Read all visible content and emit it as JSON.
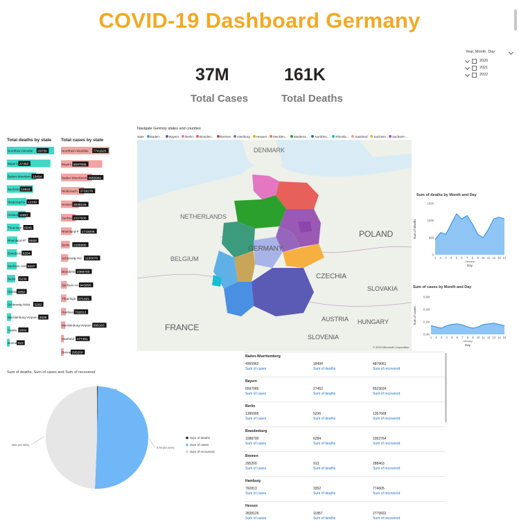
{
  "header": {
    "title": "COVID-19 Dashboard Germany"
  },
  "kpis": [
    {
      "value": "37M",
      "label": "Total Cases"
    },
    {
      "value": "161K",
      "label": "Total Deaths"
    }
  ],
  "slicer": {
    "title": "Year, Month, Day",
    "options": [
      "2020",
      "2021",
      "2022"
    ]
  },
  "colors": {
    "title": "#f2a922",
    "deaths_bar": "#3dd9c5",
    "cases_bar": "#f4a3a3",
    "area_fill": "#8ec5f5",
    "area_line": "#2b87e0"
  },
  "deaths_by_state": {
    "title": "Total deaths by state",
    "rows": [
      {
        "state": "Nordrhein-Westfalen",
        "label": "Nordrhein-Westfal",
        "value": 29730
      },
      {
        "state": "Bayern",
        "label": "Bayern",
        "value": 27452
      },
      {
        "state": "Baden-Wuerttemberg",
        "label": "Baden-Wuerttem",
        "value": 18494
      },
      {
        "state": "Sachsen",
        "label": "Sachsen",
        "value": 16518
      },
      {
        "state": "Niedersachsen",
        "label": "Niedersachs",
        "value": 12230
      },
      {
        "state": "Hessen",
        "label": "Hessen",
        "value": 11857
      },
      {
        "state": "Thueringen",
        "label": "Thueringe",
        "value": 8046
      },
      {
        "state": "Rheinland-Pfalz",
        "label": "Rheinland-Pf",
        "value": 6626
      },
      {
        "state": "Brandenburg",
        "label": "Brandenb",
        "value": 6284
      },
      {
        "state": "Sachsen-Anhalt",
        "label": "Sachsen-Anh",
        "value": 6107
      },
      {
        "state": "Berlin",
        "label": "Berlin",
        "value": 5236
      },
      {
        "state": "Hamburg",
        "label": "Hambu",
        "value": 3352
      },
      {
        "state": "Schleswig-Holstein",
        "label": "Schleswig-Holst",
        "value": 3282
      },
      {
        "state": "Mecklenburg-Vorpommern",
        "label": "Mecklenburg-Vorpom",
        "value": 2639
      },
      {
        "state": "Saarland",
        "label": "Saarla",
        "value": 2002
      },
      {
        "state": "Bremen",
        "label": "Breme",
        "value": 913
      }
    ]
  },
  "cases_by_state": {
    "title": "Total cases by state",
    "rows": [
      {
        "label": "Nordrhein-Westfale",
        "value": 7741625
      },
      {
        "label": "Bayern",
        "value": 6597086
      },
      {
        "label": "Baden-Wuerttemb",
        "value": 4955962
      },
      {
        "label": "Niedersach",
        "value": 3726279
      },
      {
        "label": "Hessen",
        "value": 2838126
      },
      {
        "label": "Sachse",
        "value": 2327930
      },
      {
        "label": "Rheinland-P",
        "value": 1715006
      },
      {
        "label": "Berlin",
        "value": 1395995
      },
      {
        "label": "Schleswig-Hol",
        "value": 1150078
      },
      {
        "label": "Brandenb",
        "value": 1088700
      },
      {
        "label": "Sachsen-An",
        "value": 943096
      },
      {
        "label": "Thueringe",
        "value": 871531
      },
      {
        "label": "Hamburg",
        "value": 792813
      },
      {
        "label": "Mecklenburg-Vorpom",
        "value": 695163
      },
      {
        "label": "Saarland",
        "value": 477361
      },
      {
        "label": "Breme",
        "value": 295200
      }
    ]
  },
  "map": {
    "title": "Navigate Germny states and counties",
    "legend_label": "state",
    "legend": [
      "Baden-...",
      "Bayern",
      "Berlin",
      "Branden...",
      "Bremen",
      "Hamburg",
      "Hessen",
      "Mecklen...",
      "Niedersa...",
      "Nordrhei...",
      "Rheinla...",
      "Saarland",
      "Sachsen",
      "Sachsen-..."
    ],
    "legend_colors": [
      "#4a90e2",
      "#5b5bb5",
      "#e377c2",
      "#e8605a",
      "#8c564b",
      "#9467bd",
      "#bcbd22",
      "#e07b54",
      "#2ca02c",
      "#1f77b4",
      "#17becf",
      "#ff9896",
      "#f5b041",
      "#9b59b6"
    ],
    "countries": [
      "DENMARK",
      "NETHERLANDS",
      "BELGIUM",
      "GERMANY",
      "POLAND",
      "CZECHIA",
      "SLOVAKIA",
      "AUSTRIA",
      "HUNGARY",
      "FRANCE",
      "SLOVENIA"
    ],
    "attribution": "© 2023 Microsoft Corporation"
  },
  "chart_data": [
    {
      "type": "area",
      "title": "Sum of deaths by Month and Day",
      "ylabel": "Sum of deaths",
      "xlabel": "Day",
      "x_caption": "January",
      "x": [
        1,
        2,
        3,
        4,
        5,
        6,
        7,
        8,
        9,
        10,
        11,
        12,
        13,
        14
      ],
      "y": [
        450,
        650,
        600,
        900,
        1200,
        1050,
        1150,
        900,
        600,
        500,
        750,
        1050,
        1100,
        1050
      ],
      "yticks": [
        0,
        500,
        1000,
        1500
      ],
      "ylim": [
        0,
        1500
      ]
    },
    {
      "type": "area",
      "title": "Sum of cases by Month and Day",
      "ylabel": "Sum of cases",
      "xlabel": "Day",
      "x_caption": "January",
      "x": [
        1,
        2,
        3,
        4,
        5,
        6,
        7,
        8,
        9,
        10,
        11,
        12,
        13,
        14,
        15
      ],
      "y": [
        0.07,
        0.06,
        0.05,
        0.07,
        0.08,
        0.085,
        0.075,
        0.06,
        0.05,
        0.06,
        0.08,
        0.085,
        0.09,
        0.08,
        0.07
      ],
      "ytick_labels": [
        "0.0M",
        "0.1M",
        "0.2M",
        "0.3M"
      ],
      "ylim": [
        0,
        0.3
      ]
    },
    {
      "type": "pie",
      "title": "Sum of deaths, Sum of cases and Sum of recovered",
      "slices": [
        {
          "name": "Sum of deaths",
          "value": 0.22,
          "label": "0M (0.22%)",
          "color": "#252423"
        },
        {
          "name": "Sum of cases",
          "value": 50.43,
          "label": "37M (50.43%)",
          "color": "#6fb7f7"
        },
        {
          "name": "Sum of recovered",
          "value": 49.35,
          "label": "36M (49.35%)",
          "color": "#e6e6e6"
        }
      ],
      "legend": [
        "Sum of deaths",
        "Sum of cases",
        "Sum of recovered"
      ]
    }
  ],
  "state_cards": {
    "metric_labels": [
      "Sum of cases",
      "Sum of deaths",
      "Sum of recovered"
    ],
    "rows": [
      {
        "state": "Baden-Wuerttemberg",
        "cases": "4955962",
        "deaths": "18494",
        "recovered": "4879061"
      },
      {
        "state": "Bayern",
        "cases": "6597086",
        "deaths": "27452",
        "recovered": "6523024"
      },
      {
        "state": "Berlin",
        "cases": "1395995",
        "deaths": "5236",
        "recovered": "1357668"
      },
      {
        "state": "Brandenburg",
        "cases": "1088700",
        "deaths": "6284",
        "recovered": "1052764"
      },
      {
        "state": "Bremen",
        "cases": "295200",
        "deaths": "913",
        "recovered": "288463"
      },
      {
        "state": "Hamburg",
        "cases": "792813",
        "deaths": "3352",
        "recovered": "774605"
      },
      {
        "state": "Hessen",
        "cases": "2838126",
        "deaths": "11857",
        "recovered": "2779922"
      }
    ]
  }
}
